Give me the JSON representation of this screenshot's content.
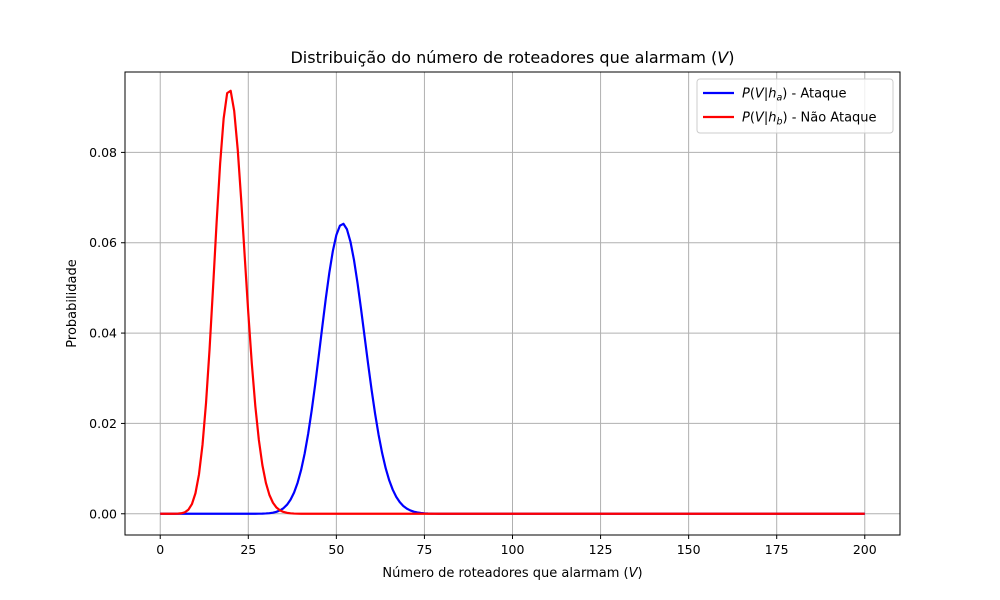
{
  "chart_data": {
    "type": "line",
    "title": "Distribuição do número de roteadores que alarmam (V)",
    "xlabel": "Número de roteadores que alarmam (V)",
    "ylabel": "Probabilidade",
    "xlim": [
      -10,
      210
    ],
    "ylim": [
      -0.0047,
      0.0978
    ],
    "xticks": [
      0,
      25,
      50,
      75,
      100,
      125,
      150,
      175,
      200
    ],
    "yticks": [
      0.0,
      0.02,
      0.04,
      0.06,
      0.08
    ],
    "ytick_labels": [
      "0.00",
      "0.02",
      "0.04",
      "0.06",
      "0.08"
    ],
    "grid": true,
    "legend_position": "top-right",
    "series": [
      {
        "name": "P(V|h_a) - Ataque",
        "color": "#0000ff",
        "distribution": {
          "kind": "binomial",
          "n": 200,
          "p": 0.26
        },
        "peak": {
          "x": 52,
          "y": 0.0643
        }
      },
      {
        "name": "P(V|h_b) - Não Ataque",
        "color": "#ff0000",
        "distribution": {
          "kind": "binomial",
          "n": 200,
          "p": 0.1
        },
        "peak": {
          "x": 20,
          "y": 0.0936
        }
      }
    ]
  }
}
